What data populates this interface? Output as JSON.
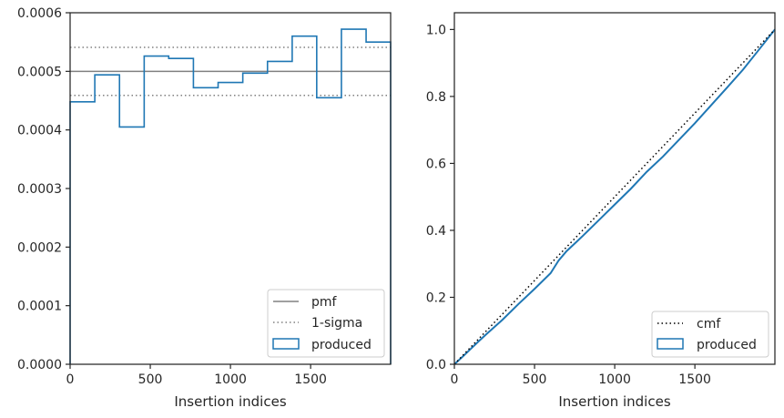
{
  "chart_data": [
    {
      "type": "line",
      "xlabel": "Insertion indices",
      "ylabel": "",
      "xlim": [
        0,
        1999
      ],
      "ylim": [
        0,
        0.0006
      ],
      "xticks": [
        0,
        500,
        1000,
        1500
      ],
      "xtick_labels": [
        "0",
        "500",
        "1000",
        "1500"
      ],
      "yticks": [
        0,
        0.0001,
        0.0002,
        0.0003,
        0.0004,
        0.0005,
        0.0006
      ],
      "ytick_labels": [
        "0.0000",
        "0.0001",
        "0.0002",
        "0.0003",
        "0.0004",
        "0.0005",
        "0.0006"
      ],
      "grid": false,
      "legend_position": "bottom-right",
      "pmf": {
        "name": "pmf",
        "y": 0.0005,
        "color": "#808080"
      },
      "sigma": {
        "name": "1-sigma",
        "lower": 0.000459,
        "upper": 0.000541,
        "color": "#808080"
      },
      "histogram": {
        "name": "produced",
        "color": "#1f77b4",
        "bin_edges": [
          0,
          154,
          308,
          462,
          615,
          769,
          923,
          1077,
          1231,
          1385,
          1538,
          1692,
          1846,
          1999
        ],
        "values": [
          0.000448,
          0.000494,
          0.000405,
          0.000526,
          0.000522,
          0.000472,
          0.000481,
          0.000497,
          0.000517,
          0.00056,
          0.000455,
          0.000572,
          0.00055
        ]
      }
    },
    {
      "type": "line",
      "xlabel": "Insertion indices",
      "ylabel": "",
      "xlim": [
        0,
        1999
      ],
      "ylim": [
        0,
        1.05
      ],
      "xticks": [
        0,
        500,
        1000,
        1500
      ],
      "xtick_labels": [
        "0",
        "500",
        "1000",
        "1500"
      ],
      "yticks": [
        0,
        0.2,
        0.4,
        0.6,
        0.8,
        1.0
      ],
      "ytick_labels": [
        "0.0",
        "0.2",
        "0.4",
        "0.6",
        "0.8",
        "1.0"
      ],
      "grid": false,
      "legend_position": "bottom-right",
      "cmf": {
        "name": "cmf",
        "x": [
          0,
          1999
        ],
        "y": [
          0,
          1.0
        ],
        "color": "#000000"
      },
      "produced": {
        "name": "produced",
        "color": "#1f77b4",
        "x": [
          0,
          50,
          100,
          150,
          200,
          300,
          400,
          500,
          600,
          650,
          700,
          800,
          900,
          1000,
          1100,
          1200,
          1300,
          1400,
          1500,
          1600,
          1700,
          1800,
          1900,
          1999
        ],
        "y": [
          0,
          0.022,
          0.045,
          0.068,
          0.09,
          0.133,
          0.18,
          0.225,
          0.272,
          0.31,
          0.338,
          0.383,
          0.43,
          0.477,
          0.524,
          0.575,
          0.62,
          0.67,
          0.72,
          0.773,
          0.826,
          0.88,
          0.94,
          1.0
        ]
      }
    }
  ],
  "legend_left": {
    "items": [
      {
        "label": "pmf",
        "style": "solid",
        "color": "#808080"
      },
      {
        "label": "1-sigma",
        "style": "dotted",
        "color": "#808080"
      },
      {
        "label": "produced",
        "style": "patch",
        "color": "#1f77b4"
      }
    ]
  },
  "legend_right": {
    "items": [
      {
        "label": "cmf",
        "style": "dotted",
        "color": "#000000"
      },
      {
        "label": "produced",
        "style": "patch",
        "color": "#1f77b4"
      }
    ]
  }
}
